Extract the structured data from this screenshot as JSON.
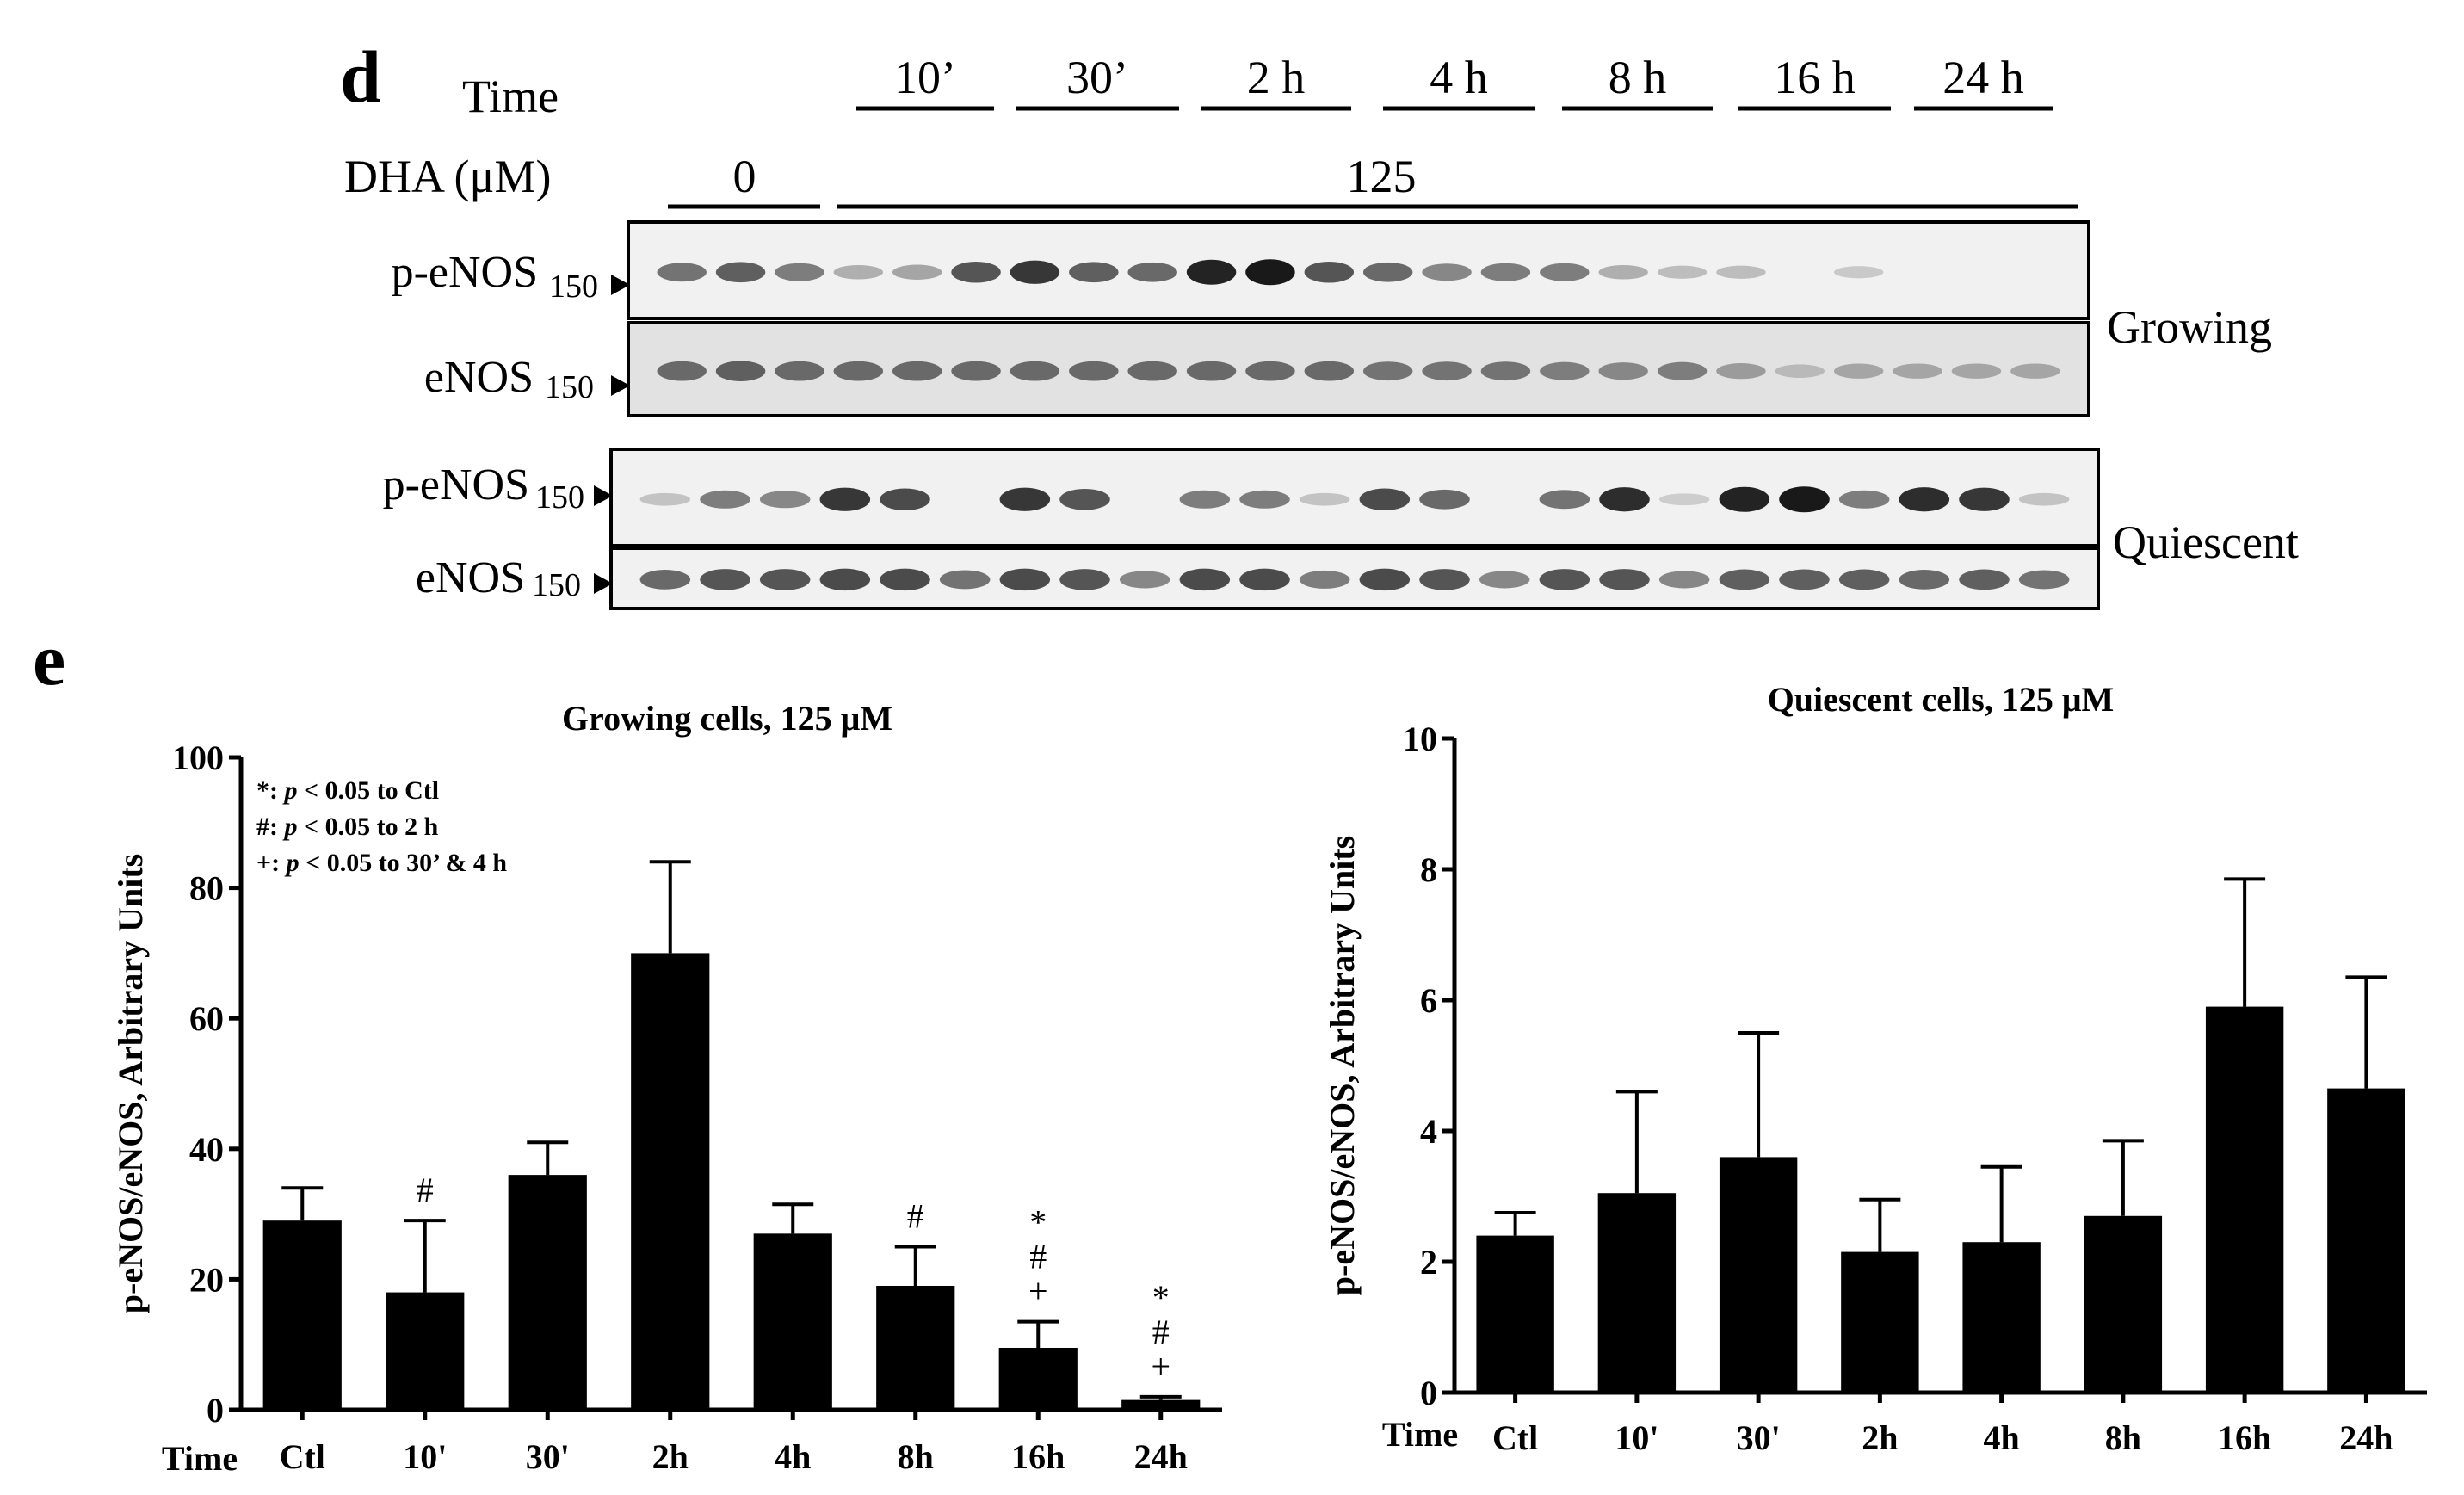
{
  "panel_d": {
    "letter": "d",
    "time_label": "Time",
    "dha_label": "DHA (μM)",
    "time_points": [
      "10’",
      "30’",
      "2 h",
      "4 h",
      "8 h",
      "16 h",
      "24 h"
    ],
    "dose_zero": "0",
    "dose_treated": "125",
    "mw_marker": "150",
    "blots": [
      {
        "label": "p-eNOS",
        "group": "growing",
        "intensities": [
          0.55,
          0.65,
          0.5,
          0.25,
          0.3,
          0.7,
          0.85,
          0.65,
          0.6,
          0.95,
          1.0,
          0.7,
          0.6,
          0.45,
          0.5,
          0.5,
          0.25,
          0.18,
          0.18,
          0.0,
          0.12,
          0.0,
          0.0,
          0.0
        ]
      },
      {
        "label": "eNOS",
        "group": "growing",
        "intensities": [
          0.6,
          0.65,
          0.6,
          0.6,
          0.6,
          0.6,
          0.6,
          0.6,
          0.6,
          0.6,
          0.6,
          0.6,
          0.55,
          0.55,
          0.55,
          0.5,
          0.45,
          0.5,
          0.35,
          0.2,
          0.3,
          0.3,
          0.3,
          0.3
        ]
      },
      {
        "label": "p-eNOS",
        "group": "quiescent",
        "intensities": [
          0.15,
          0.5,
          0.45,
          0.85,
          0.75,
          0.0,
          0.85,
          0.7,
          0.0,
          0.5,
          0.5,
          0.15,
          0.75,
          0.6,
          0.0,
          0.55,
          0.9,
          0.1,
          0.95,
          1.0,
          0.5,
          0.9,
          0.85,
          0.15
        ]
      },
      {
        "label": "eNOS",
        "group": "quiescent",
        "intensities": [
          0.6,
          0.7,
          0.7,
          0.75,
          0.75,
          0.55,
          0.75,
          0.7,
          0.45,
          0.75,
          0.75,
          0.5,
          0.75,
          0.7,
          0.45,
          0.7,
          0.7,
          0.45,
          0.65,
          0.65,
          0.65,
          0.6,
          0.65,
          0.55
        ]
      }
    ],
    "group_labels": {
      "growing": "Growing",
      "quiescent": "Quiescent"
    }
  },
  "panel_e": {
    "letter": "e"
  },
  "chart_data": [
    {
      "type": "bar",
      "title": "Growing cells, 125 μM",
      "xlabel": "Time",
      "ylabel": "p-eNOS/eNOS, Arbitrary Units",
      "categories": [
        "Ctl",
        "10'",
        "30'",
        "2h",
        "4h",
        "8h",
        "16h",
        "24h"
      ],
      "values": [
        29,
        18,
        36,
        70,
        27,
        19,
        9.5,
        1.5
      ],
      "errors": [
        5,
        11,
        5,
        14,
        4.5,
        6,
        4,
        0.5
      ],
      "ylim": [
        0,
        100
      ],
      "yticks": [
        0,
        20,
        40,
        60,
        80,
        100
      ],
      "significance": [
        "",
        "#",
        "",
        "",
        "",
        "#",
        "*\n#\n+",
        "*\n#\n+"
      ],
      "legend": [
        {
          "symbol": "*:",
          "p": "p",
          "text": " < 0.05 to Ctl"
        },
        {
          "symbol": "#:",
          "p": "p",
          "text": " < 0.05 to 2 h"
        },
        {
          "symbol": "+:",
          "p": "p",
          "text": " < 0.05 to 30’ & 4 h"
        }
      ],
      "bar_color": "#000000"
    },
    {
      "type": "bar",
      "title": "Quiescent cells, 125 μM",
      "xlabel": "Time",
      "ylabel": "p-eNOS/eNOS, Arbitrary Units",
      "categories": [
        "Ctl",
        "10'",
        "30'",
        "2h",
        "4h",
        "8h",
        "16h",
        "24h"
      ],
      "values": [
        2.4,
        3.05,
        3.6,
        2.15,
        2.3,
        2.7,
        5.9,
        4.65
      ],
      "errors": [
        0.35,
        1.55,
        1.9,
        0.8,
        1.15,
        1.15,
        1.95,
        1.7
      ],
      "ylim": [
        0,
        10
      ],
      "yticks": [
        0,
        2,
        4,
        6,
        8,
        10
      ],
      "significance": [],
      "legend": [],
      "bar_color": "#000000"
    }
  ]
}
